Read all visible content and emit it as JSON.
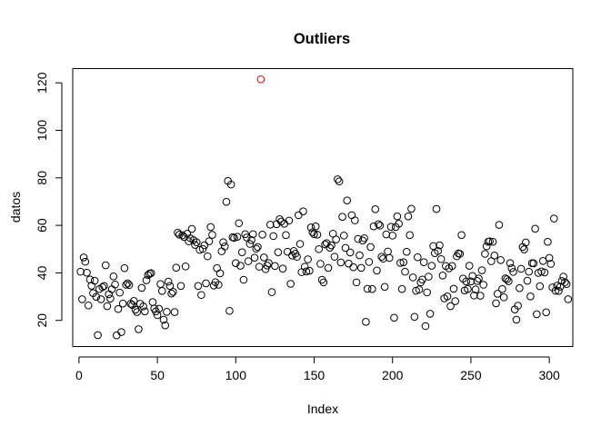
{
  "chart_data": {
    "type": "scatter",
    "title": "Outliers",
    "xlabel": "Index",
    "ylabel": "datos",
    "xlim": [
      -4,
      315
    ],
    "ylim": [
      9,
      126
    ],
    "xticks": [
      0,
      50,
      100,
      150,
      200,
      250,
      300
    ],
    "yticks": [
      20,
      40,
      60,
      80,
      100,
      120
    ],
    "grid": false,
    "colors": {
      "normal": "#000000",
      "outlier": "#dd0000"
    },
    "outlier": {
      "index": 116,
      "value": 121.5
    },
    "series": [
      {
        "values": [
          40.5,
          28.9,
          46.5,
          44.7,
          40.1,
          26.3,
          37.2,
          34.6,
          31.5,
          36.7,
          29.9,
          13.8,
          33.2,
          28.9,
          34.0,
          34.5,
          43.2,
          26.0,
          31.0,
          29.2,
          33.1,
          38.5,
          35.1,
          13.7,
          24.8,
          31.7,
          15.1,
          27.1,
          42.0,
          35.0,
          35.6,
          34.9,
          27.0,
          26.5,
          28.2,
          24.5,
          23.5,
          16.3,
          27.0,
          33.7,
          25.9,
          23.8,
          36.9,
          39.1,
          39.7,
          39.9,
          27.7,
          25.0,
          23.8,
          22.2,
          24.9,
          35.3,
          32.4,
          20.3,
          17.9,
          23.6,
          36.3,
          34.5,
          31.3,
          32.0,
          23.5,
          42.2,
          56.9,
          56.1,
          34.5,
          55.8,
          55.1,
          42.7,
          56.5,
          53.3,
          54.6,
          58.5,
          53.8,
          51.8,
          52.9,
          34.5,
          49.7,
          30.7,
          50.1,
          51.6,
          35.6,
          47.0,
          53.3,
          59.3,
          56.0,
          34.7,
          36.1,
          42.0,
          35.0,
          39.8,
          49.1,
          52.9,
          51.1,
          69.9,
          78.7,
          24.0,
          77.2,
          55.0,
          54.7,
          44.1,
          55.2,
          60.9,
          43.0,
          48.7,
          37.1,
          56.3,
          54.9,
          44.9,
          52.2,
          53.8,
          56.3,
          46.4,
          50.2,
          50.9,
          42.6,
          121.5,
          56.1,
          46.5,
          41.6,
          43.1,
          44.1,
          60.3,
          31.9,
          55.5,
          42.9,
          60.5,
          48.7,
          62.6,
          61.6,
          41.8,
          60.7,
          55.9,
          48.9,
          62.0,
          35.4,
          47.3,
          49.2,
          48.1,
          46.8,
          64.3,
          52.2,
          40.3,
          65.9,
          42.6,
          40.6,
          45.7,
          40.9,
          59.1,
          57.1,
          56.3,
          59.6,
          56.1,
          50.0,
          43.8,
          37.1,
          36.0,
          52.0,
          52.5,
          42.1,
          50.6,
          51.6,
          56.5,
          46.8,
          54.1,
          79.4,
          78.5,
          44.4,
          63.6,
          55.7,
          50.5,
          70.5,
          43.9,
          48.6,
          64.3,
          42.4,
          62.1,
          36.0,
          54.3,
          47.4,
          42.1,
          53.6,
          54.6,
          19.4,
          33.3,
          44.6,
          50.9,
          33.2,
          59.6,
          66.8,
          41.0,
          60.5,
          59.9,
          46.8,
          46.0,
          34.1,
          56.2,
          49.0,
          46.3,
          59.4,
          55.7,
          21.1,
          59.3,
          63.8,
          60.7,
          44.2,
          33.2,
          44.5,
          40.5,
          48.9,
          63.8,
          55.9,
          67.0,
          38.1,
          21.5,
          32.5,
          46.6,
          33.0,
          36.0,
          37.2,
          44.5,
          17.6,
          31.8,
          38.4,
          22.8,
          43.0,
          51.3,
          48.3,
          66.9,
          49.2,
          51.6,
          45.8,
          38.9,
          29.3,
          42.9,
          30.1,
          41.9,
          26.0,
          42.9,
          33.3,
          28.1,
          47.0,
          48.2,
          48.0,
          55.9,
          37.6,
          32.6,
          36.4,
          33.2,
          43.0,
          36.4,
          38.7,
          30.5,
          33.0,
          36.6,
          37.6,
          30.4,
          41.1,
          35.0,
          48.0,
          51.2,
          53.1,
          53.3,
          44.9,
          53.1,
          47.3,
          27.2,
          31.2,
          60.2,
          45.4,
          33.2,
          29.7,
          37.7,
          37.3,
          36.5,
          44.1,
          42.0,
          40.4,
          24.6,
          20.3,
          26.2,
          33.6,
          41.7,
          50.9,
          49.9,
          52.8,
          36.7,
          40.5,
          30.1,
          44.1,
          44.0,
          58.6,
          22.6,
          40.0,
          34.4,
          40.6,
          45.0,
          40.2,
          23.4,
          53.1,
          46.3,
          43.8,
          33.9,
          62.9,
          32.5,
          34.6,
          32.4,
          34.2,
          36.6,
          38.4,
          36.1,
          35.3,
          28.9
        ]
      }
    ]
  }
}
